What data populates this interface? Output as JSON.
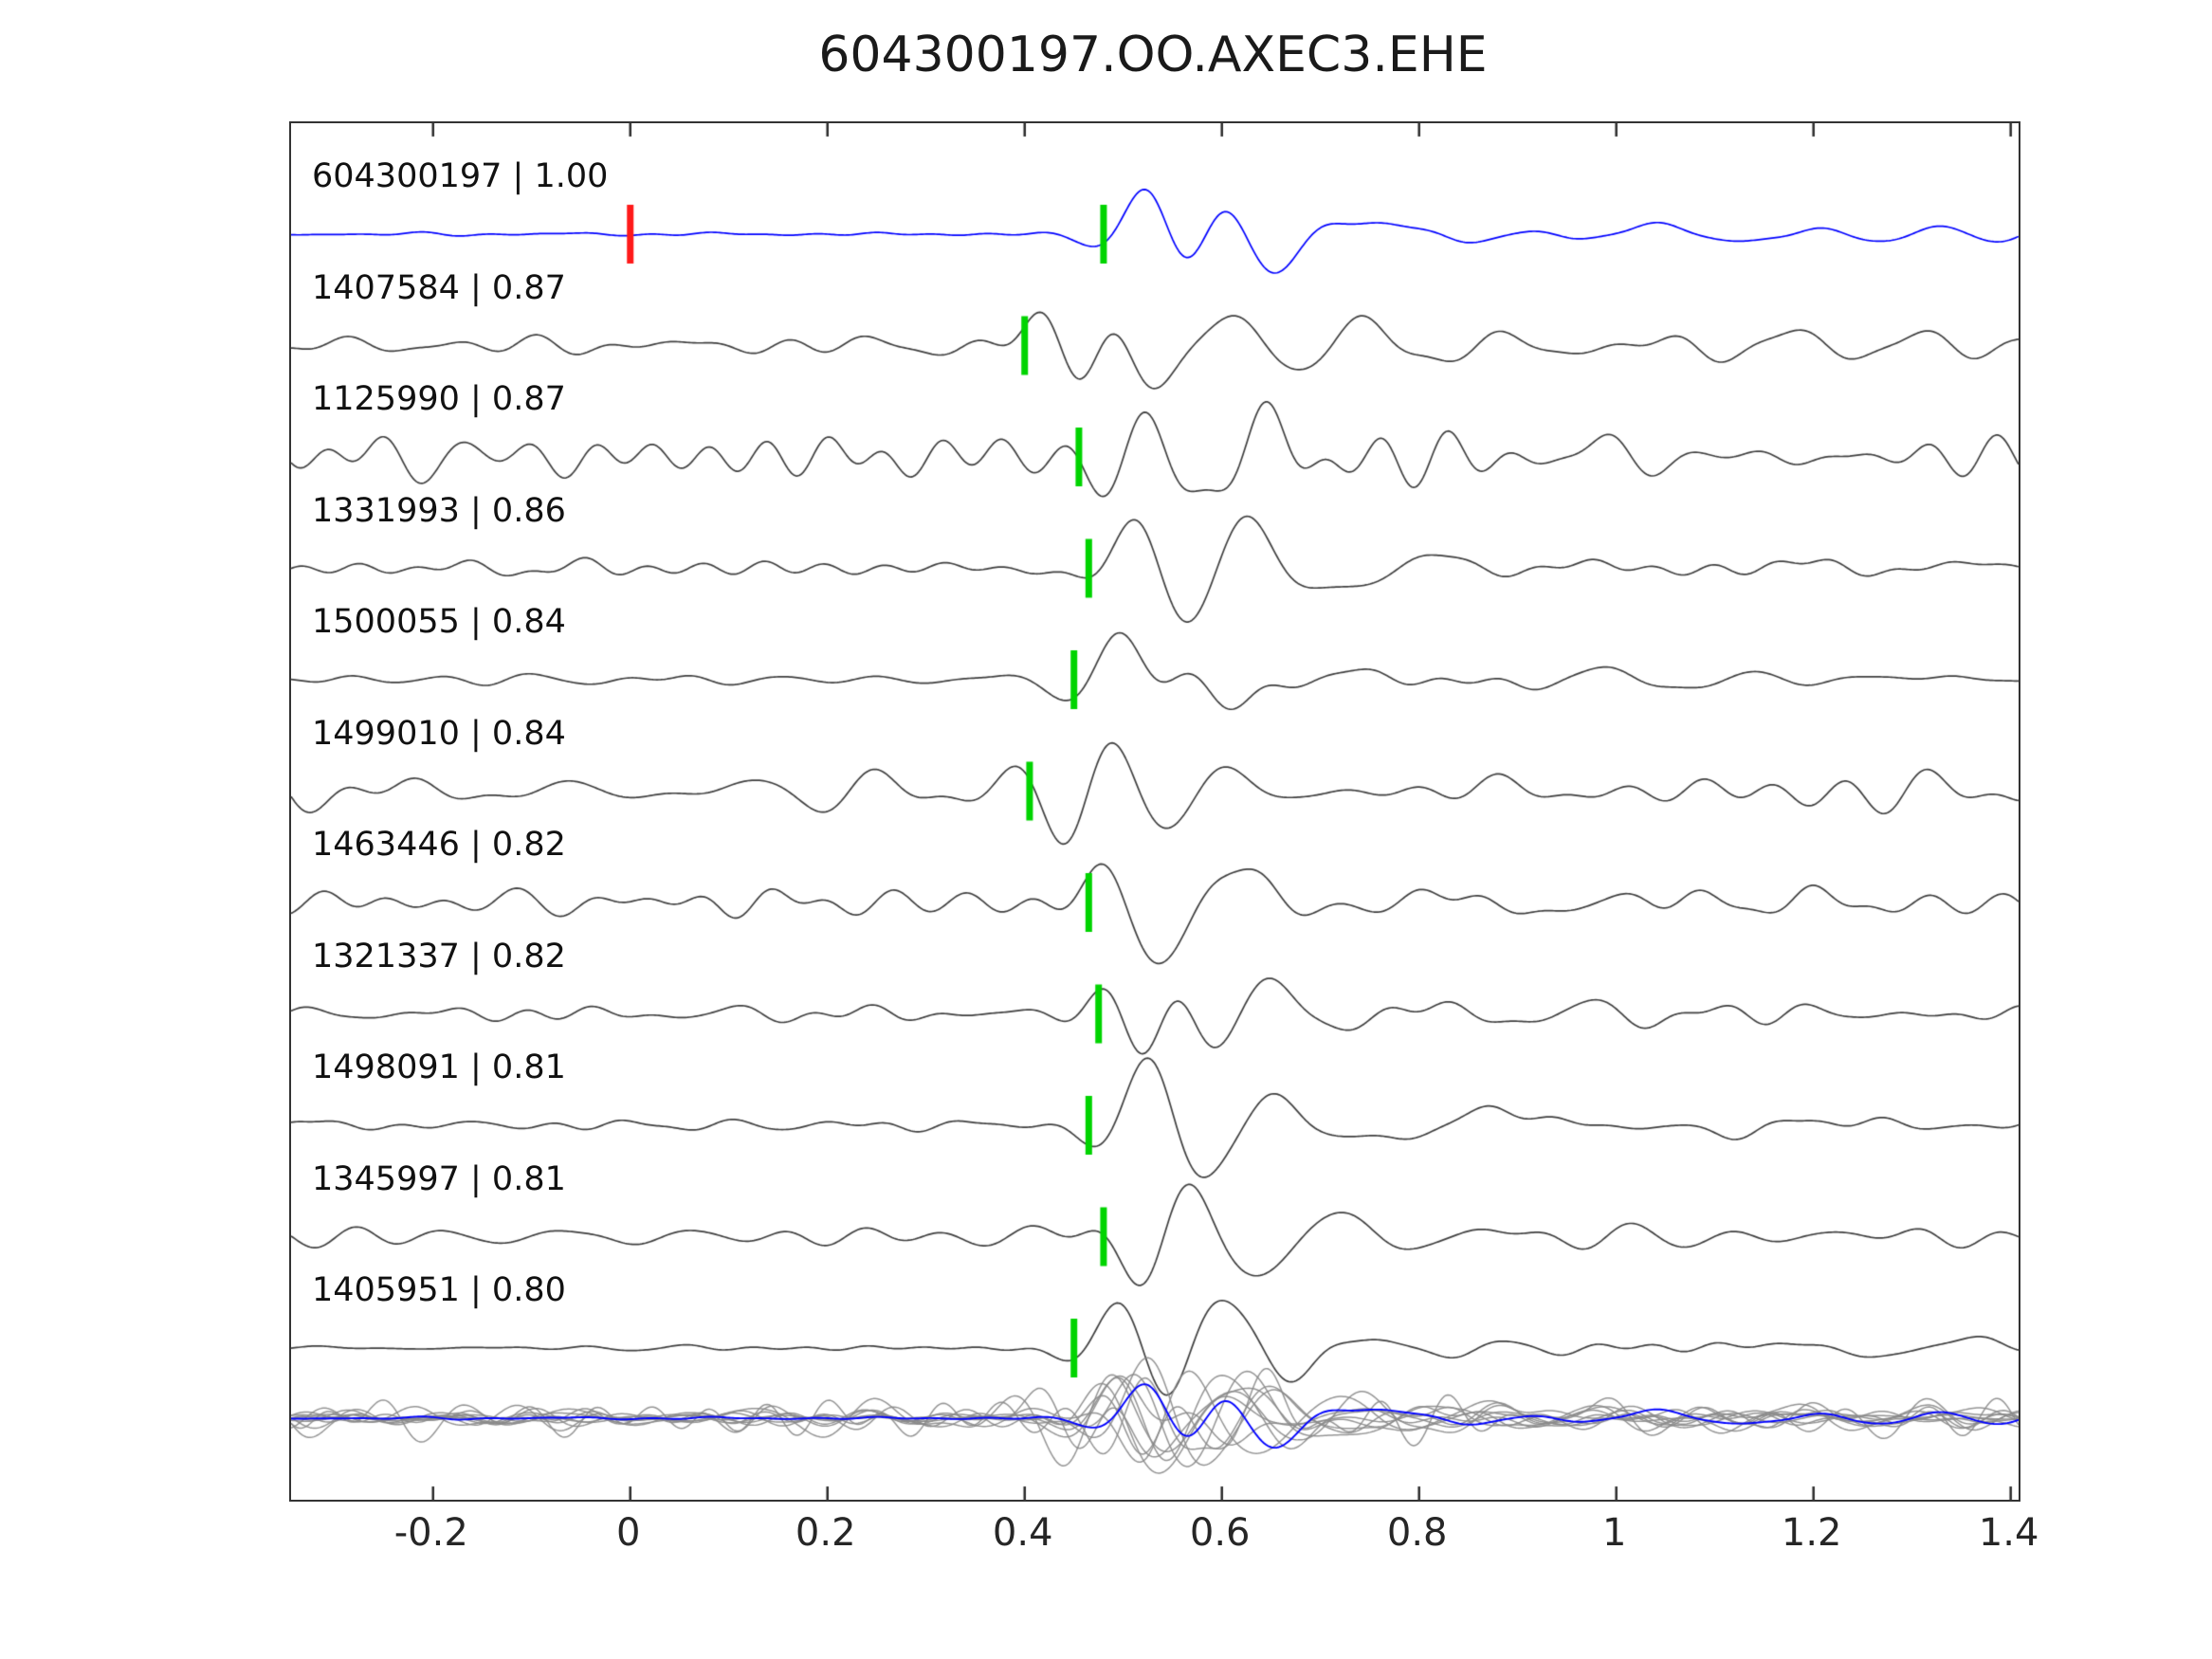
{
  "title": "604300197.OO.AXEC3.EHE",
  "chart_data": {
    "type": "line",
    "title": "604300197.OO.AXEC3.EHE",
    "xlabel": "",
    "ylabel": "",
    "xlim": [
      -0.344,
      1.408
    ],
    "x_ticks": [
      -0.2,
      0,
      0.2,
      0.4,
      0.6,
      0.8,
      1,
      1.2,
      1.4
    ],
    "x_tick_labels": [
      "-0.2",
      "0",
      "0.2",
      "0.4",
      "0.6",
      "0.8",
      "1",
      "1.2",
      "1.4"
    ],
    "grid": false,
    "legend": "none",
    "description": "Stacked seismic waveform traces; template trace on top (blue) with reference pick (red) at t=0 and pick (green); matched event traces below with green picks; bottom row is the aligned overlay of all traces.",
    "pick_color": "#00d400",
    "template_color": "#0000ff",
    "match_color": "#3f3f3f",
    "overlay_color": "#8a8a8a",
    "reference_pick": {
      "trace": "604300197",
      "time": 0.0,
      "color": "#ff1a1a"
    },
    "traces": [
      {
        "id": "604300197",
        "correlation": "1.00",
        "label": "604300197 | 1.00",
        "pick_time": 0.48,
        "color": "#0000ff",
        "noise_level": 0.06
      },
      {
        "id": "1407584",
        "correlation": "0.87",
        "label": "1407584 | 0.87",
        "pick_time": 0.4,
        "color": "#3f3f3f",
        "noise_level": 0.32
      },
      {
        "id": "1125990",
        "correlation": "0.87",
        "label": "1125990 | 0.87",
        "pick_time": 0.455,
        "color": "#3f3f3f",
        "noise_level": 0.6
      },
      {
        "id": "1331993",
        "correlation": "0.86",
        "label": "1331993 | 0.86",
        "pick_time": 0.465,
        "color": "#3f3f3f",
        "noise_level": 0.25
      },
      {
        "id": "1500055",
        "correlation": "0.84",
        "label": "1500055 | 0.84",
        "pick_time": 0.45,
        "color": "#3f3f3f",
        "noise_level": 0.2
      },
      {
        "id": "1499010",
        "correlation": "0.84",
        "label": "1499010 | 0.84",
        "pick_time": 0.405,
        "color": "#3f3f3f",
        "noise_level": 0.6
      },
      {
        "id": "1463446",
        "correlation": "0.82",
        "label": "1463446 | 0.82",
        "pick_time": 0.465,
        "color": "#3f3f3f",
        "noise_level": 0.4
      },
      {
        "id": "1321337",
        "correlation": "0.82",
        "label": "1321337 | 0.82",
        "pick_time": 0.475,
        "color": "#3f3f3f",
        "noise_level": 0.22
      },
      {
        "id": "1498091",
        "correlation": "0.81",
        "label": "1498091 | 0.81",
        "pick_time": 0.465,
        "color": "#3f3f3f",
        "noise_level": 0.2
      },
      {
        "id": "1345997",
        "correlation": "0.81",
        "label": "1345997 | 0.81",
        "pick_time": 0.48,
        "color": "#3f3f3f",
        "noise_level": 0.28
      },
      {
        "id": "1405951",
        "correlation": "0.80",
        "label": "1405951 | 0.80",
        "pick_time": 0.45,
        "color": "#3f3f3f",
        "noise_level": 0.1
      }
    ]
  }
}
